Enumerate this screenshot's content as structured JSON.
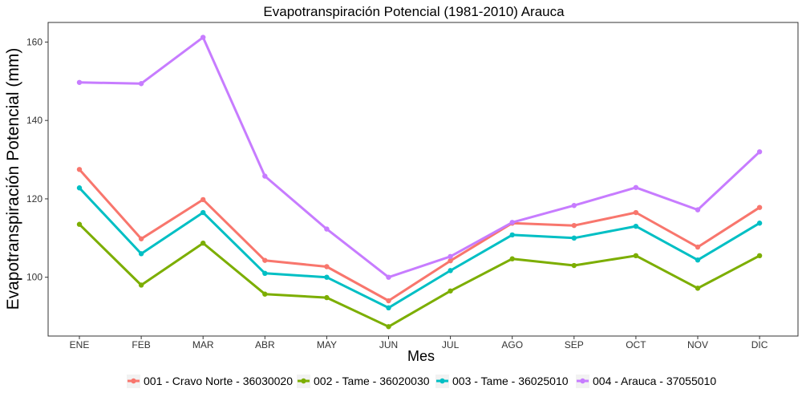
{
  "chart_data": {
    "type": "line",
    "title": "Evapotranspiración Potencial (1981-2010)  Arauca",
    "xlabel": "Mes",
    "ylabel": "Evapotranspiración Potencial  (mm)",
    "categories": [
      "ENE",
      "FEB",
      "MAR",
      "ABR",
      "MAY",
      "JUN",
      "JUL",
      "AGO",
      "SEP",
      "OCT",
      "NOV",
      "DIC"
    ],
    "ylim": [
      85,
      165
    ],
    "yticks": [
      100,
      120,
      140,
      160
    ],
    "grid": false,
    "legend_position": "bottom",
    "series": [
      {
        "name": "001 - Cravo Norte - 36030020",
        "color": "#F8766D",
        "values": [
          127.5,
          109.8,
          119.8,
          104.3,
          102.7,
          94.0,
          104.2,
          113.8,
          113.2,
          116.5,
          107.7,
          117.8
        ]
      },
      {
        "name": "002 - Tame - 36020030",
        "color": "#7CAE00",
        "values": [
          113.5,
          98.0,
          108.7,
          95.7,
          94.8,
          87.4,
          96.5,
          104.7,
          103.0,
          105.5,
          97.2,
          105.5
        ]
      },
      {
        "name": "003 - Tame - 36025010",
        "color": "#00BFC4",
        "values": [
          122.8,
          106.0,
          116.5,
          101.0,
          100.0,
          92.2,
          101.7,
          110.8,
          110.0,
          113.0,
          104.4,
          113.8
        ]
      },
      {
        "name": "004 - Arauca - 37055010",
        "color": "#C77CFF",
        "values": [
          149.7,
          149.4,
          161.2,
          125.8,
          112.3,
          100.0,
          105.3,
          114.0,
          118.3,
          122.9,
          117.2,
          132.0
        ]
      }
    ]
  }
}
